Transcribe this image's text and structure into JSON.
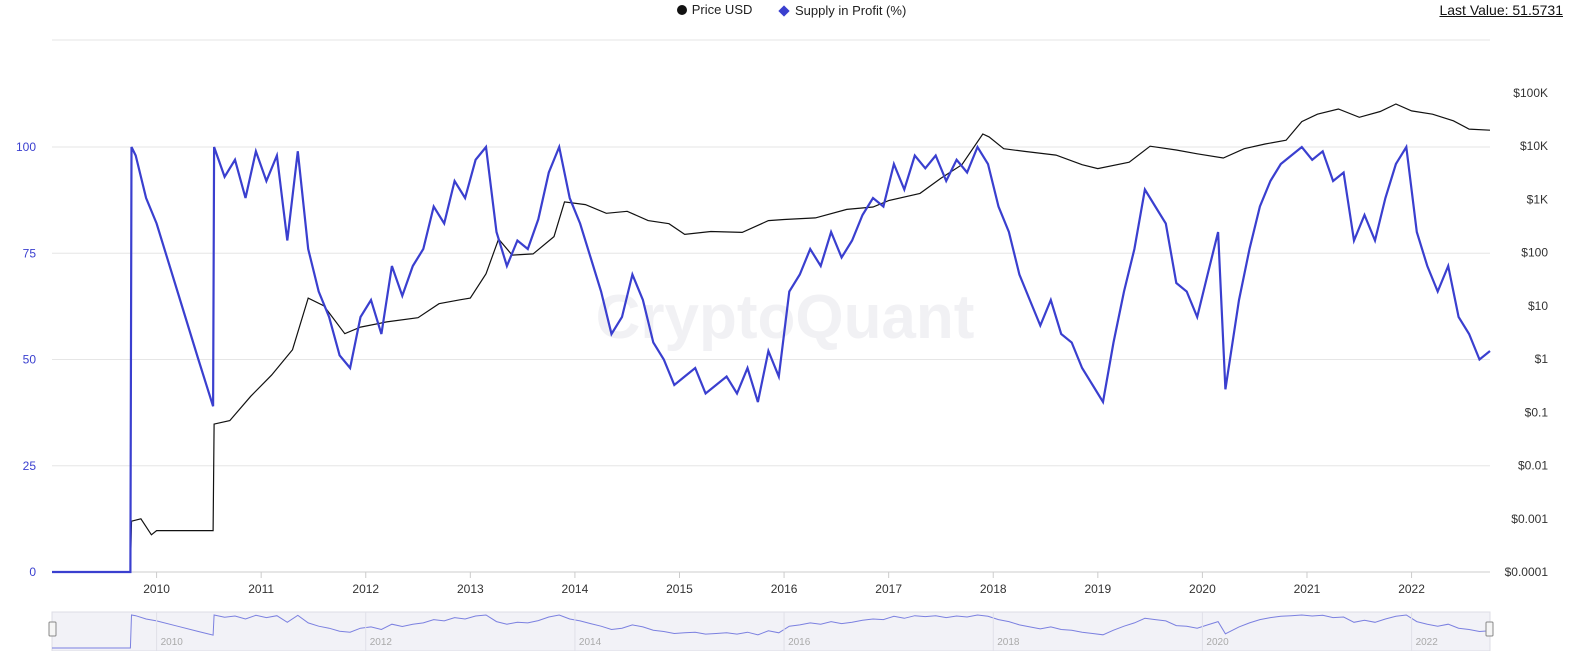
{
  "legend": {
    "price_label": "Price USD",
    "supply_label": "Supply in Profit (%)"
  },
  "last_value": "Last Value: 51.5731",
  "watermark": "CryptoQuant",
  "chart_data": {
    "type": "line",
    "x_range": [
      2009.0,
      2022.75
    ],
    "x_ticks": [
      "2010",
      "2011",
      "2012",
      "2013",
      "2014",
      "2015",
      "2016",
      "2017",
      "2018",
      "2019",
      "2020",
      "2021",
      "2022"
    ],
    "navigator_ticks": [
      "2010",
      "2012",
      "2014",
      "2016",
      "2018",
      "2020",
      "2022"
    ],
    "y_left": {
      "ticks": [
        "0",
        "25",
        "50",
        "75",
        "100"
      ],
      "range": [
        0,
        100
      ]
    },
    "y_right": {
      "scale": "log",
      "ticks": [
        "$0.0001",
        "$0.001",
        "$0.01",
        "$0.1",
        "$1",
        "$10",
        "$100",
        "$1K",
        "$10K",
        "$100K"
      ],
      "range": [
        0.0001,
        100000
      ]
    },
    "grid": true,
    "legend_position": "top-center",
    "colors": {
      "price": "#111111",
      "supply": "#3a3fcf"
    },
    "series": [
      {
        "name": "Price USD",
        "axis": "right",
        "x": [
          2009.0,
          2009.75,
          2009.76,
          2009.85,
          2009.95,
          2010.0,
          2010.54,
          2010.55,
          2010.7,
          2010.9,
          2011.1,
          2011.3,
          2011.45,
          2011.6,
          2011.8,
          2011.95,
          2012.2,
          2012.5,
          2012.7,
          2012.9,
          2013.0,
          2013.15,
          2013.27,
          2013.4,
          2013.6,
          2013.8,
          2013.9,
          2014.1,
          2014.3,
          2014.5,
          2014.7,
          2014.9,
          2015.05,
          2015.3,
          2015.6,
          2015.85,
          2016.0,
          2016.3,
          2016.6,
          2016.85,
          2017.0,
          2017.3,
          2017.5,
          2017.7,
          2017.9,
          2017.96,
          2018.1,
          2018.3,
          2018.6,
          2018.85,
          2019.0,
          2019.3,
          2019.5,
          2019.75,
          2019.95,
          2020.2,
          2020.4,
          2020.6,
          2020.8,
          2020.95,
          2021.1,
          2021.3,
          2021.5,
          2021.7,
          2021.85,
          2022.0,
          2022.2,
          2022.4,
          2022.55,
          2022.75
        ],
        "values": [
          0,
          0,
          0.0009,
          0.001,
          0.0005,
          0.0006,
          0.0006,
          0.06,
          0.07,
          0.2,
          0.5,
          1.5,
          14,
          10,
          3,
          4,
          5,
          6,
          11,
          13,
          14,
          40,
          180,
          90,
          95,
          200,
          900,
          800,
          550,
          600,
          400,
          350,
          220,
          250,
          240,
          400,
          420,
          450,
          650,
          720,
          950,
          1300,
          2500,
          4500,
          17000,
          15000,
          9000,
          8000,
          6800,
          4500,
          3800,
          5000,
          10000,
          8500,
          7200,
          6000,
          9000,
          11000,
          13000,
          29000,
          40000,
          50000,
          35000,
          45000,
          62000,
          46000,
          40000,
          30000,
          21000,
          20000
        ]
      },
      {
        "name": "Supply in Profit (%)",
        "axis": "left",
        "x": [
          2009.0,
          2009.75,
          2009.76,
          2009.8,
          2009.9,
          2010.0,
          2010.2,
          2010.4,
          2010.54,
          2010.55,
          2010.65,
          2010.75,
          2010.85,
          2010.95,
          2011.05,
          2011.15,
          2011.25,
          2011.35,
          2011.45,
          2011.55,
          2011.65,
          2011.75,
          2011.85,
          2011.95,
          2012.05,
          2012.15,
          2012.25,
          2012.35,
          2012.45,
          2012.55,
          2012.65,
          2012.75,
          2012.85,
          2012.95,
          2013.05,
          2013.15,
          2013.25,
          2013.35,
          2013.45,
          2013.55,
          2013.65,
          2013.75,
          2013.85,
          2013.95,
          2014.05,
          2014.15,
          2014.25,
          2014.35,
          2014.45,
          2014.55,
          2014.65,
          2014.75,
          2014.85,
          2014.95,
          2015.05,
          2015.15,
          2015.25,
          2015.35,
          2015.45,
          2015.55,
          2015.65,
          2015.75,
          2015.85,
          2015.95,
          2016.05,
          2016.15,
          2016.25,
          2016.35,
          2016.45,
          2016.55,
          2016.65,
          2016.75,
          2016.85,
          2016.95,
          2017.05,
          2017.15,
          2017.25,
          2017.35,
          2017.45,
          2017.55,
          2017.65,
          2017.75,
          2017.85,
          2017.95,
          2018.05,
          2018.15,
          2018.25,
          2018.35,
          2018.45,
          2018.55,
          2018.65,
          2018.75,
          2018.85,
          2018.95,
          2019.05,
          2019.15,
          2019.25,
          2019.35,
          2019.45,
          2019.55,
          2019.65,
          2019.75,
          2019.85,
          2019.95,
          2020.05,
          2020.15,
          2020.22,
          2020.35,
          2020.45,
          2020.55,
          2020.65,
          2020.75,
          2020.85,
          2020.95,
          2021.05,
          2021.15,
          2021.25,
          2021.35,
          2021.45,
          2021.55,
          2021.65,
          2021.75,
          2021.85,
          2021.95,
          2022.05,
          2022.15,
          2022.25,
          2022.35,
          2022.45,
          2022.55,
          2022.65,
          2022.75
        ],
        "values": [
          0,
          0,
          100,
          98,
          88,
          82,
          66,
          50,
          39,
          100,
          93,
          97,
          88,
          99,
          92,
          98,
          78,
          99,
          76,
          66,
          60,
          51,
          48,
          60,
          64,
          56,
          72,
          65,
          72,
          76,
          86,
          82,
          92,
          88,
          97,
          100,
          80,
          72,
          78,
          76,
          83,
          94,
          100,
          88,
          82,
          74,
          66,
          56,
          60,
          70,
          64,
          54,
          50,
          44,
          46,
          48,
          42,
          44,
          46,
          42,
          48,
          40,
          52,
          46,
          66,
          70,
          76,
          72,
          80,
          74,
          78,
          84,
          88,
          86,
          96,
          90,
          98,
          95,
          98,
          92,
          97,
          94,
          100,
          96,
          86,
          80,
          70,
          64,
          58,
          64,
          56,
          54,
          48,
          44,
          40,
          54,
          66,
          76,
          90,
          86,
          82,
          68,
          66,
          60,
          70,
          80,
          43,
          64,
          76,
          86,
          92,
          96,
          98,
          100,
          97,
          99,
          92,
          94,
          78,
          84,
          78,
          88,
          96,
          100,
          80,
          72,
          66,
          72,
          60,
          56,
          50,
          52
        ]
      }
    ]
  }
}
